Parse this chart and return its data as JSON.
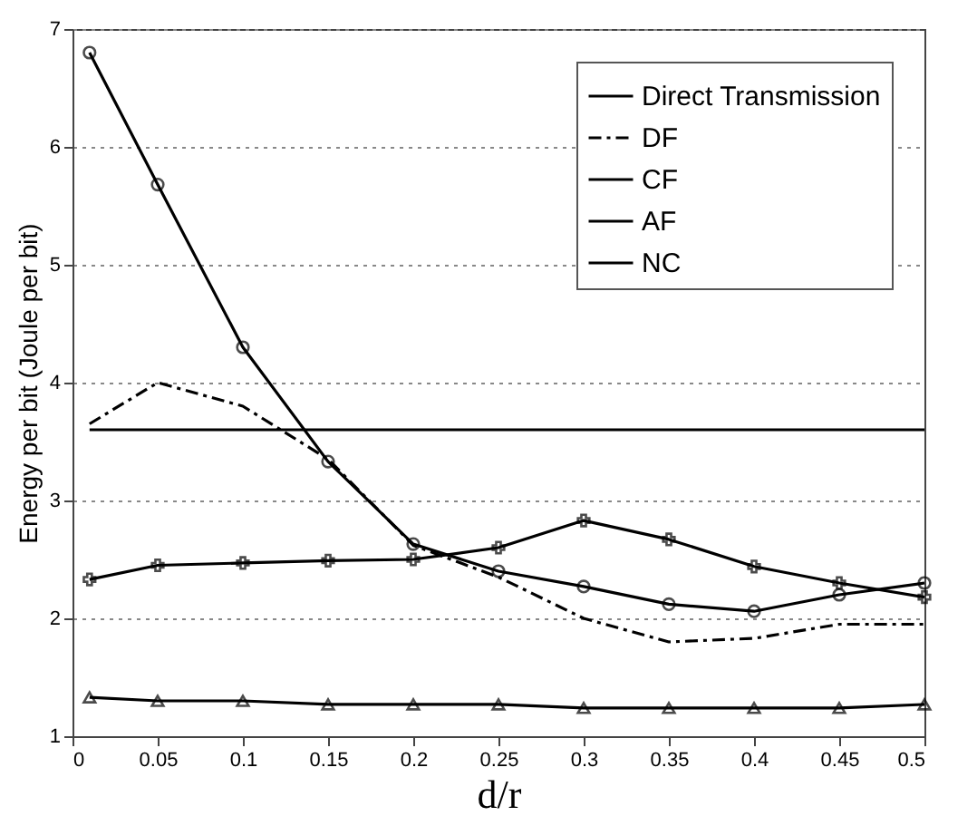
{
  "chart_data": {
    "type": "line",
    "xlabel": "d/r",
    "ylabel": "Energy per bit (Joule per bit)",
    "xlim": [
      0,
      0.5
    ],
    "xticks": [
      0,
      0.05,
      0.1,
      0.15,
      0.2,
      0.25,
      0.3,
      0.35,
      0.4,
      0.45,
      0.5
    ],
    "ylim": [
      1,
      7
    ],
    "yticks": [
      1,
      2,
      3,
      4,
      5,
      6,
      7
    ],
    "grid": "y",
    "legend": "top right",
    "series": [
      {
        "name": "Direct Transmission",
        "color": "#000000",
        "x": [
          0.01,
          0.5
        ],
        "values": [
          3.6,
          3.6
        ],
        "marker": "none",
        "line_style": "solid"
      },
      {
        "name": "DF",
        "color": "#000000",
        "x": [
          0.01,
          0.05,
          0.1,
          0.15,
          0.2,
          0.25,
          0.3,
          0.35,
          0.4,
          0.45,
          0.5
        ],
        "values": [
          3.65,
          4.0,
          3.8,
          3.35,
          2.62,
          2.35,
          2.0,
          1.8,
          1.83,
          1.95,
          1.95
        ],
        "marker": "none",
        "line_style": "dashed"
      },
      {
        "name": "CF",
        "color": "#000000",
        "x": [
          0.01,
          0.05,
          0.1,
          0.15,
          0.2,
          0.25,
          0.3,
          0.35,
          0.4,
          0.45,
          0.5
        ],
        "values": [
          2.33,
          2.45,
          2.47,
          2.49,
          2.5,
          2.6,
          2.83,
          2.67,
          2.44,
          2.3,
          2.18
        ],
        "marker": "cross",
        "line_style": "solid"
      },
      {
        "name": "AF",
        "color": "#000000",
        "x": [
          0.01,
          0.05,
          0.1,
          0.15,
          0.2,
          0.25,
          0.3,
          0.35,
          0.4,
          0.45,
          0.5
        ],
        "values": [
          1.33,
          1.3,
          1.3,
          1.27,
          1.27,
          1.27,
          1.24,
          1.24,
          1.24,
          1.24,
          1.27
        ],
        "marker": "triangle",
        "line_style": "solid"
      },
      {
        "name": "NC",
        "color": "#000000",
        "x": [
          0.01,
          0.05,
          0.1,
          0.15,
          0.2,
          0.25,
          0.3,
          0.35,
          0.4,
          0.45,
          0.5
        ],
        "values": [
          6.8,
          5.68,
          4.3,
          3.33,
          2.63,
          2.4,
          2.27,
          2.12,
          2.06,
          2.2,
          2.3
        ],
        "marker": "circle",
        "line_style": "solid"
      }
    ]
  }
}
